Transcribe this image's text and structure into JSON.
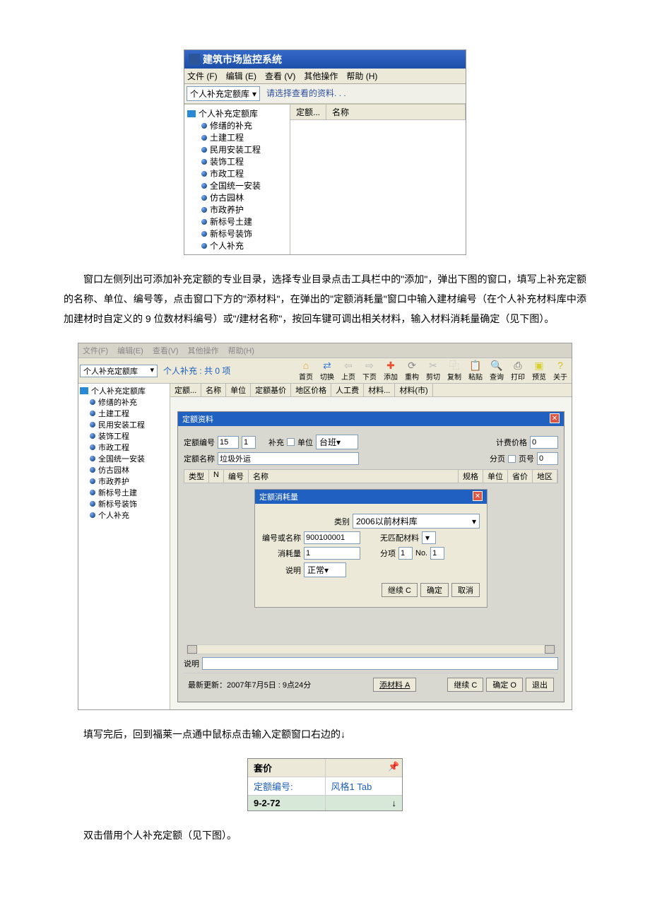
{
  "shot1": {
    "title": "建筑市场监控系统",
    "menus": [
      "文件 (F)",
      "编辑 (E)",
      "查看 (V)",
      "其他操作",
      "帮助 (H)"
    ],
    "combo": "个人补充定额库",
    "hint": "请选择查看的资料. . .",
    "tree_root": "个人补充定额库",
    "tree_items": [
      "修缮的补充",
      "土建工程",
      "民用安装工程",
      "装饰工程",
      "市政工程",
      "全国统一安装",
      "仿古园林",
      "市政养护",
      "新标号土建",
      "新标号装饰",
      "个人补充"
    ],
    "col1": "定额...",
    "col2": "名称"
  },
  "para1": "窗口左侧列出可添加补充定额的专业目录，选择专业目录点击工具栏中的\"添加\"，弹出下图的窗口，填写上补充定额的名称、单位、编号等，点击窗口下方的\"添材料\"，在弹出的\"定额消耗量\"窗口中输入建材编号（在个人补充材料库中添加建材时自定义的 9 位数材料编号）或\"/建材名称\"，按回车键可调出相关材料，输入材料消耗量确定（见下图）。",
  "shot2": {
    "menus": [
      "文件(F)",
      "编辑(E)",
      "查看(V)",
      "其他操作",
      "帮助(H)"
    ],
    "combo": "个人补充定额库",
    "count_label": "个人补充 : 共 0 项",
    "icons": [
      {
        "label": "首页",
        "glyph": "⌂",
        "color": "#e8a030"
      },
      {
        "label": "切换",
        "glyph": "⇄",
        "color": "#4080d8"
      },
      {
        "label": "上页",
        "glyph": "⇦",
        "color": "#b8b8b8"
      },
      {
        "label": "下页",
        "glyph": "⇨",
        "color": "#b8b8b8"
      },
      {
        "label": "添加",
        "glyph": "✚",
        "color": "#e85030"
      },
      {
        "label": "重构",
        "glyph": "⟳",
        "color": "#888"
      },
      {
        "label": "剪切",
        "glyph": "✂",
        "color": "#b8b8b8"
      },
      {
        "label": "复制",
        "glyph": "⿻",
        "color": "#b8b8b8"
      },
      {
        "label": "粘贴",
        "glyph": "📋",
        "color": "#b8b8b8"
      },
      {
        "label": "查询",
        "glyph": "🔍",
        "color": "#4080d8"
      },
      {
        "label": "打印",
        "glyph": "⎙",
        "color": "#666"
      },
      {
        "label": "预览",
        "glyph": "▣",
        "color": "#d8d030"
      },
      {
        "label": "关于",
        "glyph": "?",
        "color": "#d0c020"
      }
    ],
    "headers": [
      "定额...",
      "名称",
      "单位",
      "定额基价",
      "地区价格",
      "人工费",
      "材料...",
      "材料(市)"
    ],
    "tree": [
      "修缮的补充",
      "土建工程",
      "民用安装工程",
      "装饰工程",
      "市政工程",
      "全国统一安装",
      "仿古园林",
      "市政养护",
      "新标号土建",
      "新标号装饰",
      "个人补充"
    ],
    "panel": {
      "title": "定额资料",
      "f_num": "定额编号",
      "num1": "15",
      "num2": "1",
      "chk": "补充",
      "f_unit": "单位",
      "unit_val": "台班",
      "f_price": "计费价格",
      "price_val": "0",
      "f_name": "定额名称",
      "name_val": "垃圾外运",
      "f_page": "分页",
      "f_pageno": "页号",
      "pageno_val": "0",
      "sub_headers": [
        "类型",
        "N",
        "编号",
        "名称",
        "规格",
        "单位",
        "省价",
        "地区"
      ]
    },
    "modal": {
      "title": "定额消耗量",
      "f_cat": "类别",
      "cat_val": "2006以前材料库",
      "f_code": "编号或名称",
      "code_val": "900100001",
      "f_nomatch": "无匹配材料",
      "f_qty": "消耗量",
      "qty_val": "1",
      "f_sub": "分项",
      "sub_val": "1",
      "f_no": "No.",
      "no_val": "1",
      "f_desc": "说明",
      "desc_val": "正常",
      "btn_cont": "继续 C",
      "btn_ok": "确定",
      "btn_cancel": "取消"
    },
    "footer": {
      "label_desc": "说明",
      "status": "最新更新：2007年7月5日  :  9点24分",
      "btn_add": "添材料 A",
      "btn_cont": "继续 C",
      "btn_ok": "确定 O",
      "btn_exit": "退出"
    }
  },
  "para2": "填写完后，回到福莱一点通中鼠标点击输入定额窗口右边的↓",
  "table": {
    "r0c0": "套价",
    "r0c1": "",
    "r1c0": "定额编号:",
    "r1c1": "风格1 Tab",
    "r2c0": "9-2-72",
    "r2c1": "↓"
  },
  "para3": "双击借用个人补充定额（见下图）。"
}
